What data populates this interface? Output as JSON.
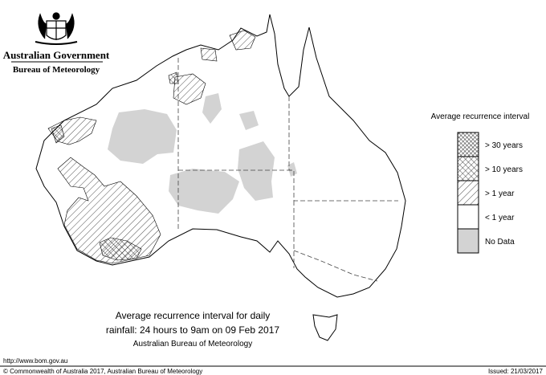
{
  "header": {
    "government": "Australian Government",
    "agency": "Bureau of Meteorology"
  },
  "legend": {
    "title": "Average recurrence interval",
    "items": [
      "> 30 years",
      "> 10 years",
      "> 1 year",
      "< 1 year",
      "No Data"
    ]
  },
  "caption": {
    "line1": "Average recurrence interval for daily",
    "line2": "rainfall: 24 hours to 9am on 09 Feb 2017",
    "line3": "Australian Bureau of Meteorology"
  },
  "footer": {
    "url": "http://www.bom.gov.au",
    "copyright": "© Commonwealth of Australia 2017, Australian Bureau of Meteorology",
    "issued": "Issued: 21/03/2017"
  }
}
